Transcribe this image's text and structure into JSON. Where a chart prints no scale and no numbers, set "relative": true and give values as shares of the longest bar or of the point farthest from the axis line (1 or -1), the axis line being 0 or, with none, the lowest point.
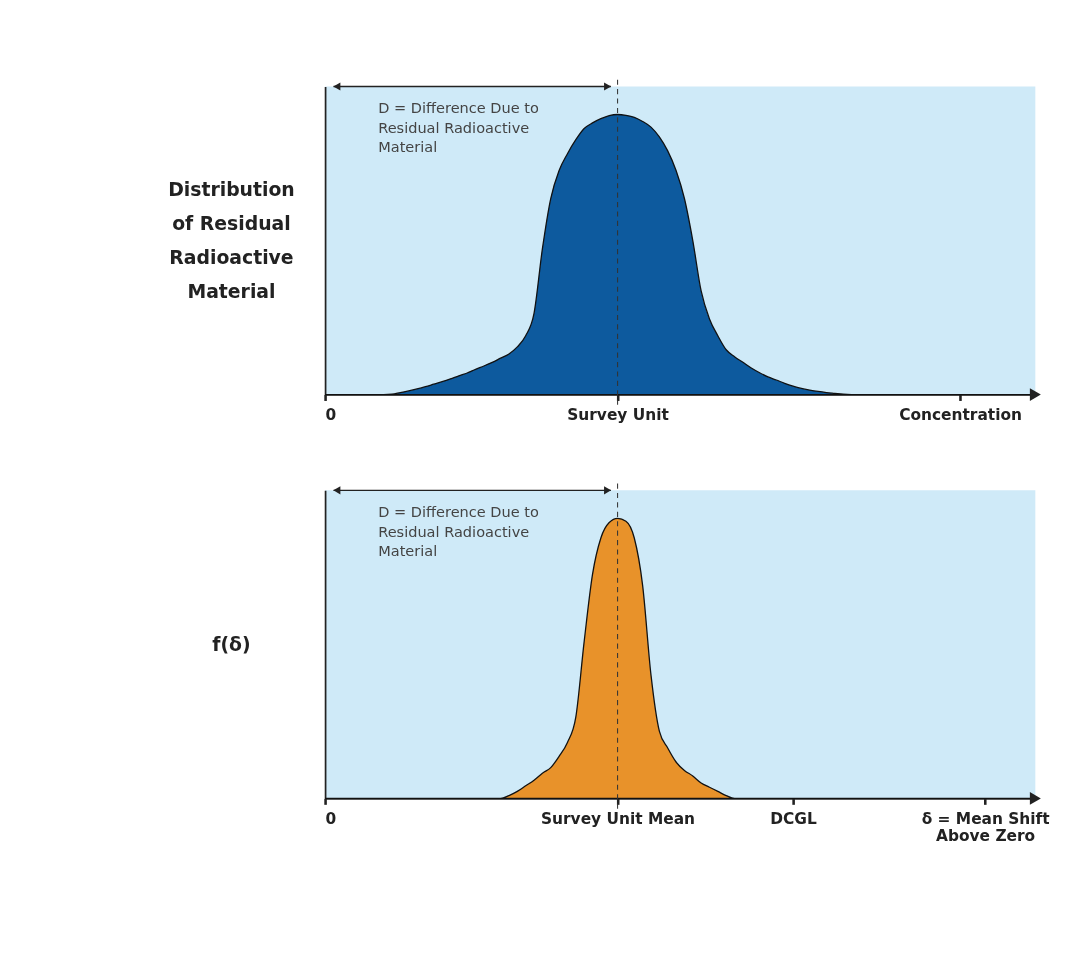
{
  "chart_data": [
    {
      "type": "area",
      "relative": true,
      "ylabel": "Distribution\nof Residual\nRadioactive\nMaterial",
      "categories": [
        "0",
        null,
        null,
        null,
        null,
        null,
        null,
        null,
        null,
        null,
        null,
        null,
        null,
        null,
        null,
        null,
        null,
        null,
        null,
        null,
        null,
        null,
        null,
        null,
        null,
        null,
        null,
        null,
        null,
        null,
        null,
        null,
        null,
        null,
        null,
        "Survey Unit",
        null,
        null,
        null,
        null,
        null,
        null,
        null,
        null,
        null,
        null,
        null,
        null,
        null,
        null,
        null,
        null,
        null,
        null,
        null,
        null,
        null,
        null,
        null,
        null,
        null,
        null,
        null,
        null,
        null,
        null,
        null,
        null,
        null,
        null,
        null,
        null,
        null,
        null,
        null,
        null,
        "Concentration",
        null,
        null,
        null,
        null,
        null,
        null,
        null,
        null,
        null
      ],
      "series": [
        {
          "color": "#0d5a9e",
          "values": [
            0,
            0,
            0,
            0,
            0,
            0,
            0,
            0,
            0.001,
            0.007,
            0.013,
            0.02,
            0.028,
            0.037,
            0.046,
            0.056,
            0.067,
            0.077,
            0.09,
            0.102,
            0.115,
            0.13,
            0.145,
            0.17,
            0.21,
            0.29,
            0.52,
            0.7,
            0.8,
            0.86,
            0.91,
            0.95,
            0.97,
            0.985,
            0.996,
            1,
            0.997,
            0.99,
            0.975,
            0.955,
            0.92,
            0.87,
            0.8,
            0.7,
            0.55,
            0.37,
            0.27,
            0.21,
            0.16,
            0.135,
            0.115,
            0.095,
            0.078,
            0.063,
            0.052,
            0.04,
            0.03,
            0.022,
            0.016,
            0.011,
            0.007,
            0.004,
            0.001,
            0,
            0,
            0,
            0,
            0,
            0,
            0,
            0,
            0,
            0,
            0,
            0,
            0,
            0,
            0,
            0,
            0,
            0,
            0,
            0,
            0,
            0,
            0
          ]
        }
      ],
      "ref_lines": [
        {
          "axis": "x",
          "value": "Survey Unit",
          "line_style": "dashed"
        }
      ],
      "annotations": [
        "D = Difference Due to\nResidual Radioactive\nMaterial"
      ],
      "grid": false
    },
    {
      "type": "area",
      "relative": true,
      "ylabel": "f(δ)",
      "categories": [
        "0",
        null,
        null,
        null,
        null,
        null,
        null,
        null,
        null,
        null,
        null,
        null,
        null,
        null,
        null,
        null,
        null,
        null,
        null,
        null,
        null,
        null,
        null,
        null,
        null,
        null,
        null,
        null,
        null,
        null,
        null,
        null,
        null,
        null,
        null,
        "Survey Unit Mean",
        null,
        null,
        null,
        null,
        null,
        null,
        null,
        null,
        null,
        null,
        null,
        null,
        null,
        null,
        null,
        null,
        null,
        null,
        null,
        null,
        "DCGL",
        null,
        null,
        null,
        null,
        null,
        null,
        null,
        null,
        null,
        null,
        null,
        null,
        null,
        null,
        null,
        null,
        null,
        null,
        null,
        null,
        null,
        null,
        "δ = Mean Shift\nAbove Zero",
        null,
        null,
        null,
        null,
        null,
        null
      ],
      "series": [
        {
          "color": "#e8922a",
          "values": [
            0,
            0,
            0,
            0,
            0,
            0,
            0,
            0,
            0,
            0,
            0,
            0,
            0,
            0,
            0,
            0,
            0,
            0,
            0,
            0,
            0,
            0,
            0.01,
            0.025,
            0.045,
            0.065,
            0.09,
            0.11,
            0.15,
            0.2,
            0.29,
            0.56,
            0.8,
            0.93,
            0.985,
            1,
            0.99,
            0.93,
            0.76,
            0.44,
            0.24,
            0.18,
            0.13,
            0.1,
            0.08,
            0.055,
            0.04,
            0.025,
            0.01,
            0,
            0,
            0,
            0,
            0,
            0,
            0,
            0,
            0,
            0,
            0,
            0,
            0,
            0,
            0,
            0,
            0,
            0,
            0,
            0,
            0,
            0,
            0,
            0,
            0,
            0,
            0,
            0,
            0,
            0,
            0,
            0,
            0,
            0,
            0,
            0,
            0
          ]
        }
      ],
      "ref_lines": [
        {
          "axis": "x",
          "value": "Survey Unit Mean",
          "line_style": "dashed"
        }
      ],
      "annotations": [
        "D = Difference Due to\nResidual Radioactive\nMaterial"
      ],
      "grid": false
    }
  ]
}
